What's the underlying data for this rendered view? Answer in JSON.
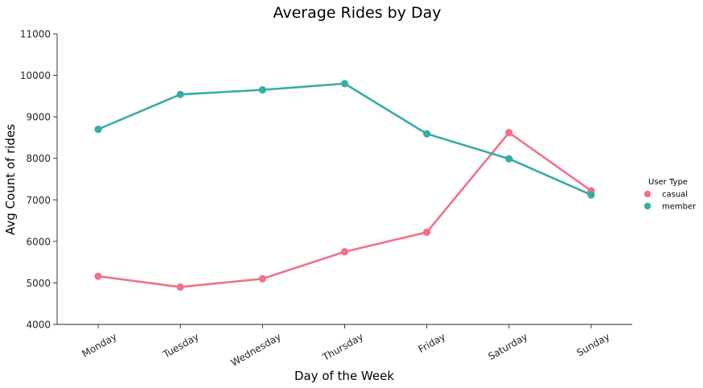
{
  "chart_data": {
    "type": "line",
    "title": "Average Rides by Day",
    "xlabel": "Day of the Week",
    "ylabel": "Avg Count of rides",
    "categories": [
      "Monday",
      "Tuesday",
      "Wednesday",
      "Thursday",
      "Friday",
      "Saturday",
      "Sunday"
    ],
    "ylim": [
      4000,
      11000
    ],
    "yticks": [
      4000,
      5000,
      6000,
      7000,
      8000,
      9000,
      10000,
      11000
    ],
    "grid": false,
    "legend": {
      "title": "User Type",
      "placement": "right"
    },
    "series": [
      {
        "name": "casual",
        "color": "#f0728a",
        "values": [
          5160,
          4900,
          5100,
          5750,
          6220,
          8620,
          7220
        ]
      },
      {
        "name": "member",
        "color": "#36ada4",
        "values": [
          8700,
          9540,
          9650,
          9800,
          8590,
          7990,
          7120
        ]
      }
    ]
  }
}
